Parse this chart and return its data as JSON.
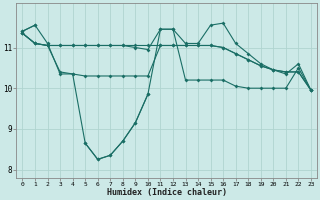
{
  "xlabel": "Humidex (Indice chaleur)",
  "bg_color": "#cce9e7",
  "line_color": "#1a6e65",
  "grid_color": "#b0d4d0",
  "x": [
    0,
    1,
    2,
    3,
    4,
    5,
    6,
    7,
    8,
    9,
    10,
    11,
    12,
    13,
    14,
    15,
    16,
    17,
    18,
    19,
    20,
    21,
    22,
    23
  ],
  "line_valley": [
    11.4,
    11.55,
    null,
    null,
    null,
    8.65,
    8.25,
    8.35,
    8.7,
    9.15,
    9.85,
    null,
    null,
    null,
    null,
    null,
    null,
    null,
    null,
    null,
    null,
    null,
    null,
    null
  ],
  "line_main": [
    11.4,
    11.55,
    11.1,
    10.35,
    10.35,
    8.65,
    8.25,
    8.35,
    8.7,
    9.15,
    9.85,
    11.45,
    11.45,
    10.2,
    10.2,
    10.2,
    10.2,
    10.05,
    10.0,
    10.0,
    10.0,
    10.0,
    10.5,
    9.95
  ],
  "line_flat1": [
    11.35,
    11.1,
    11.05,
    10.4,
    10.35,
    10.3,
    10.3,
    10.3,
    10.3,
    10.3,
    10.3,
    11.05,
    11.05,
    11.05,
    11.05,
    11.05,
    11.0,
    10.85,
    10.7,
    10.55,
    10.45,
    10.4,
    10.4,
    9.95
  ],
  "line_flat2": [
    11.35,
    11.1,
    11.05,
    11.05,
    11.05,
    11.05,
    11.05,
    11.05,
    11.05,
    11.05,
    11.05,
    11.05,
    11.05,
    11.05,
    11.05,
    11.05,
    11.0,
    10.85,
    10.7,
    10.55,
    10.45,
    10.4,
    10.4,
    9.95
  ],
  "line_top": [
    11.35,
    11.1,
    11.05,
    11.05,
    11.05,
    11.05,
    11.05,
    11.05,
    11.05,
    11.0,
    10.95,
    11.45,
    11.45,
    11.1,
    11.1,
    11.55,
    11.6,
    11.1,
    10.85,
    10.6,
    10.45,
    10.35,
    10.6,
    9.95
  ],
  "ylim": [
    7.8,
    12.1
  ],
  "xlim": [
    -0.5,
    23.5
  ],
  "yticks": [
    8,
    9,
    10,
    11
  ],
  "xticks": [
    0,
    1,
    2,
    3,
    4,
    5,
    6,
    7,
    8,
    9,
    10,
    11,
    12,
    13,
    14,
    15,
    16,
    17,
    18,
    19,
    20,
    21,
    22,
    23
  ]
}
